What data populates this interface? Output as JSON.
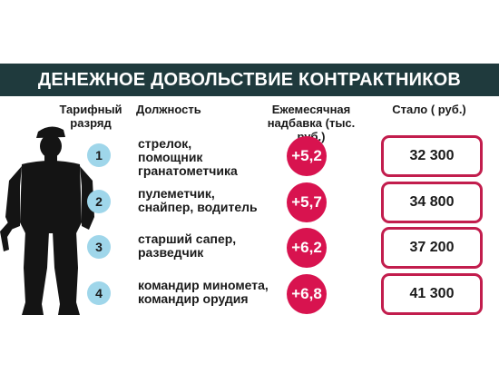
{
  "title": "ДЕНЕЖНОЕ ДОВОЛЬСТВИЕ КОНТРАКТНИКОВ",
  "headers": {
    "grade_line1": "Тарифный",
    "grade_line2": "разряд",
    "position": "Должность",
    "bonus_line1": "Ежемесячная",
    "bonus_line2": "надбавка (тыс. руб.)",
    "total": "Стало ( руб.)"
  },
  "rows": [
    {
      "grade": "1",
      "position_line1": "стрелок,",
      "position_line2": "помощник",
      "position_line3": "гранатометчика",
      "bonus": "+5,2",
      "total": "32 300"
    },
    {
      "grade": "2",
      "position_line1": "пулеметчик,",
      "position_line2": "снайпер, водитель",
      "position_line3": "",
      "bonus": "+5,7",
      "total": "34 800"
    },
    {
      "grade": "3",
      "position_line1": "старший сапер,",
      "position_line2": "разведчик",
      "position_line3": "",
      "bonus": "+6,2",
      "total": "37 200"
    },
    {
      "grade": "4",
      "position_line1": "командир миномета,",
      "position_line2": "командир орудия",
      "position_line3": "",
      "bonus": "+6,8",
      "total": "41 300"
    }
  ],
  "colors": {
    "title_bar": "#1f3a3d",
    "grade_circle": "#9fd6ea",
    "bonus_circle": "#d8134f",
    "total_border": "#c21d4d",
    "silhouette": "#141414"
  },
  "icons": {
    "soldier": "soldier-silhouette-icon"
  }
}
